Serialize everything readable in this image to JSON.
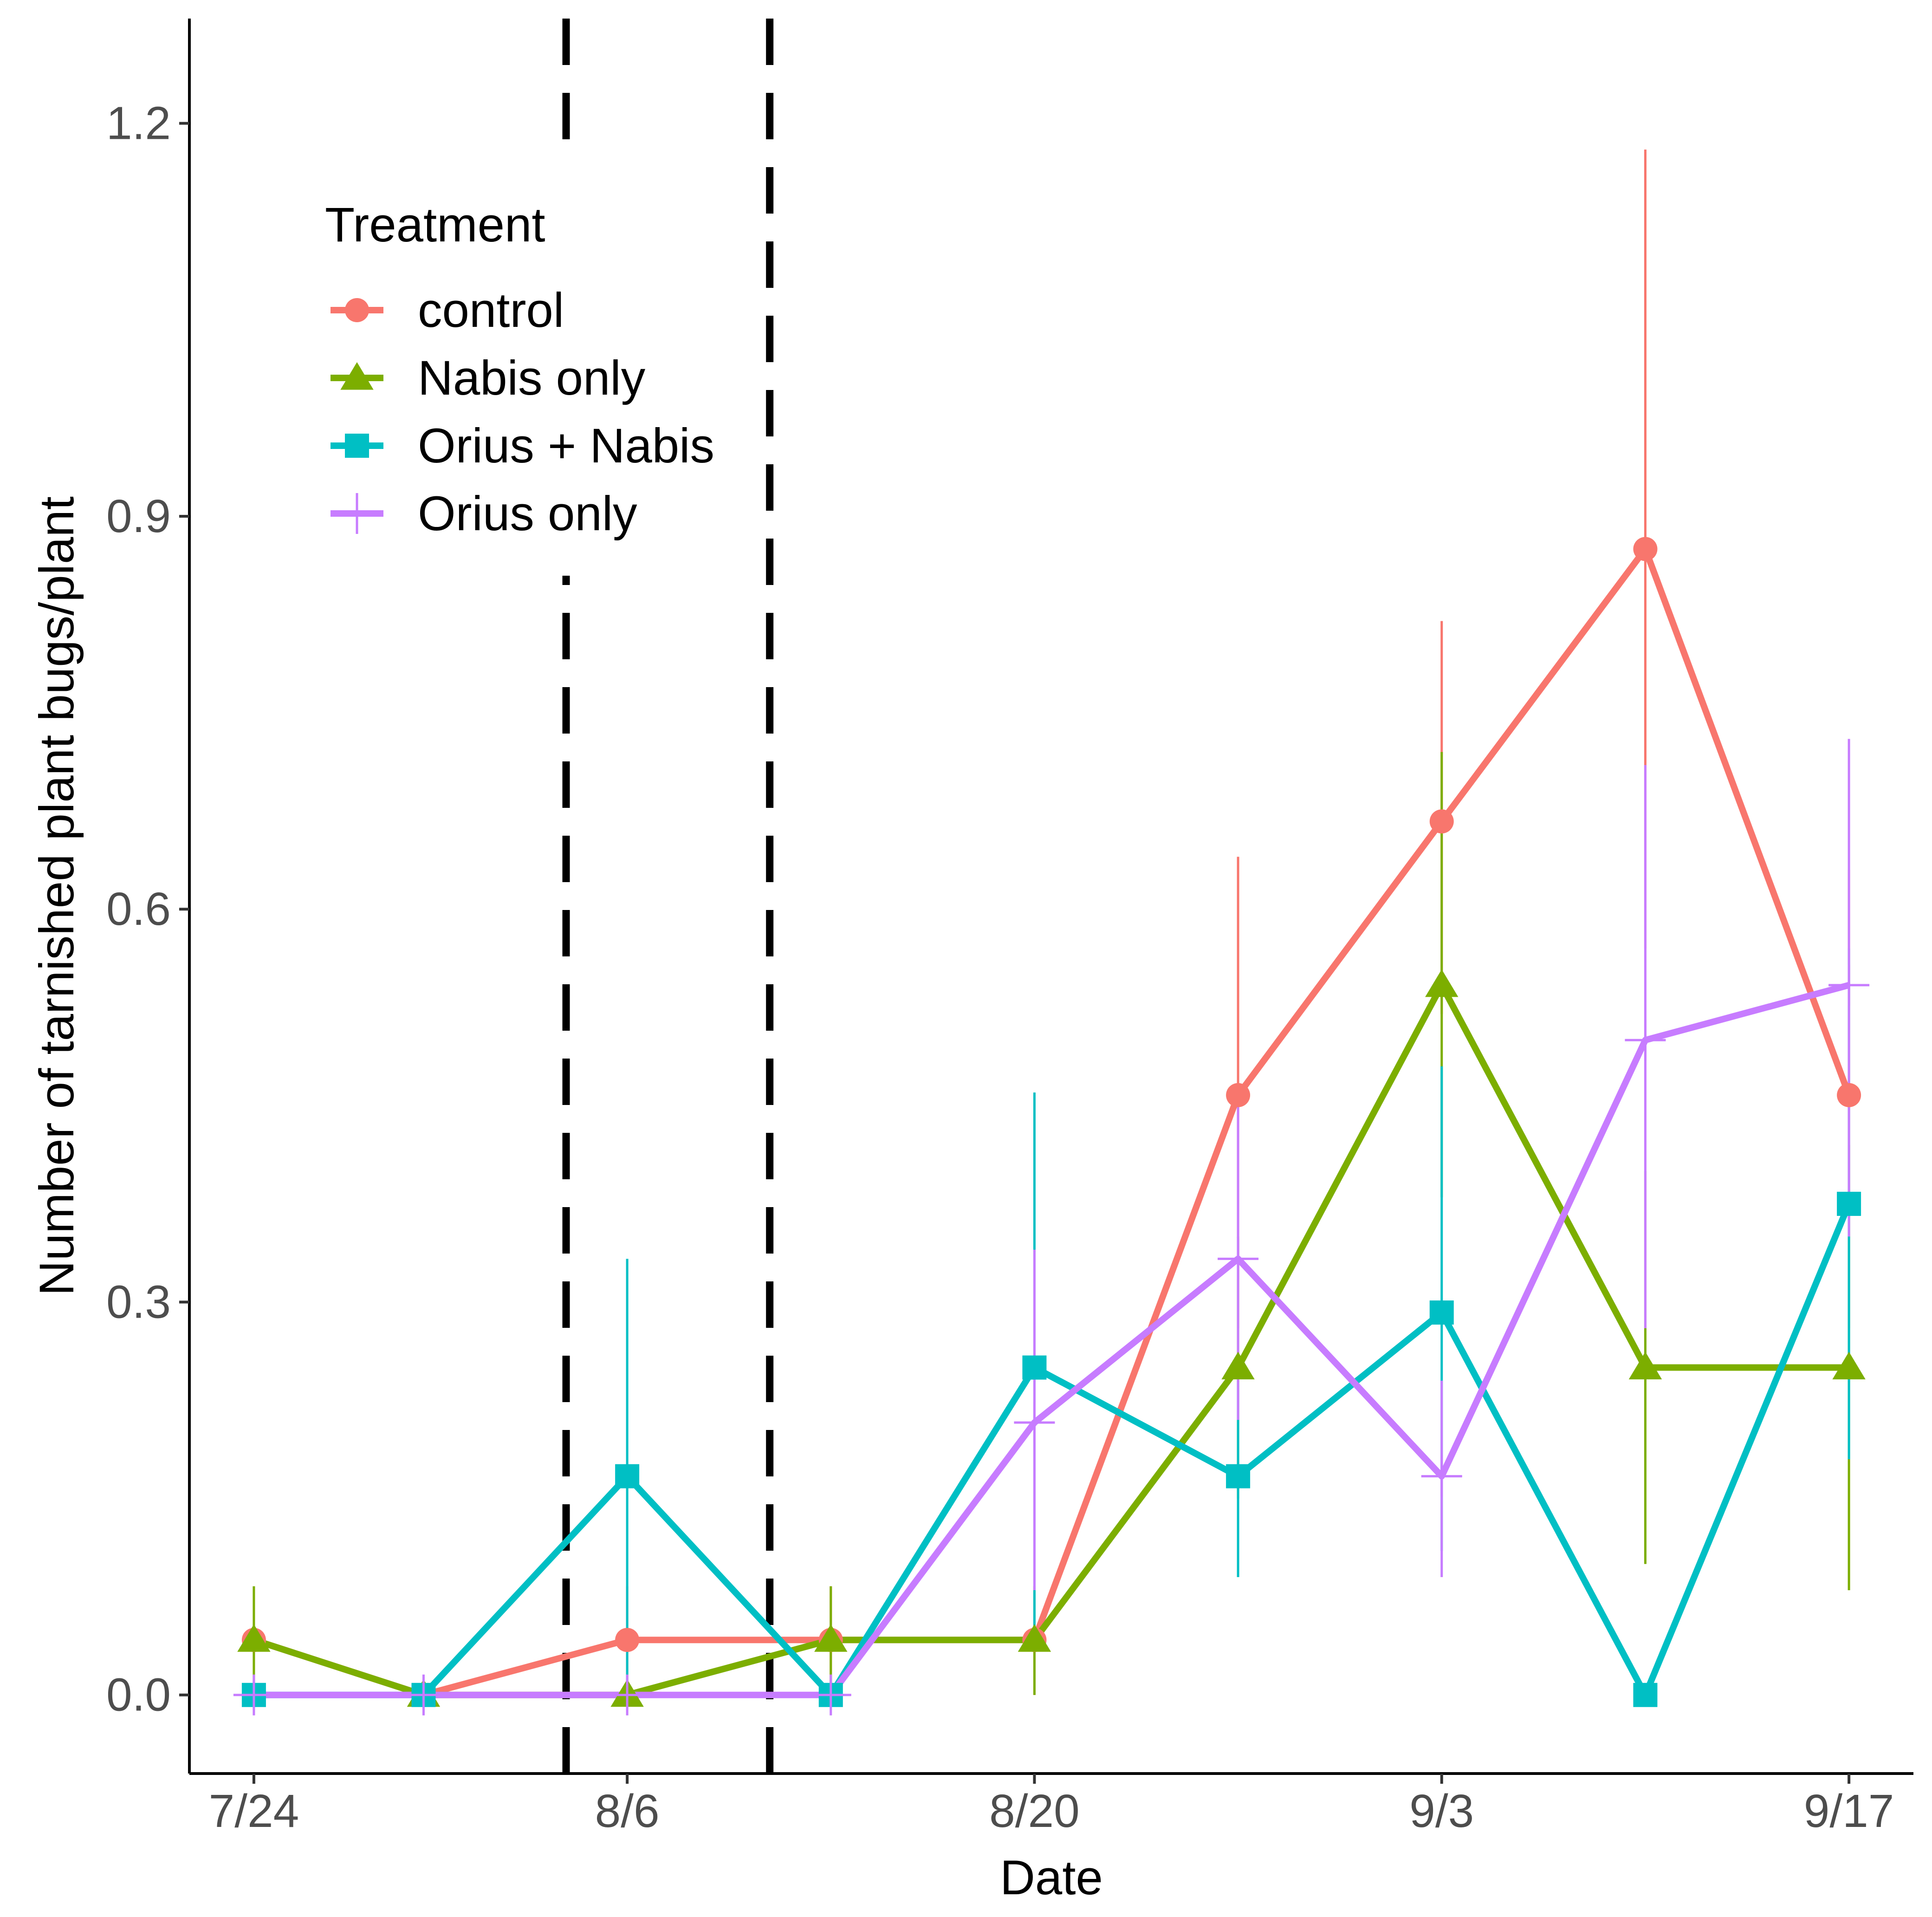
{
  "chart_data": {
    "type": "line",
    "title": "",
    "xlabel": "Date",
    "ylabel": "Number of tarnished plant bugs/plant",
    "x_days": [
      0,
      5,
      11,
      17,
      23,
      29,
      35,
      41,
      47
    ],
    "x_tick_days": [
      0,
      11,
      23,
      35,
      47
    ],
    "x_tick_labels": [
      "7/24",
      "8/6",
      "8/20",
      "9/3",
      "9/17"
    ],
    "ylim": [
      -0.06,
      1.28
    ],
    "y_ticks": [
      0.0,
      0.3,
      0.6,
      0.9,
      1.2
    ],
    "y_tick_labels": [
      "0.0",
      "0.3",
      "0.6",
      "0.9",
      "1.2"
    ],
    "vlines_days": [
      9.2,
      15.2
    ],
    "grid": false,
    "legend": {
      "title": "Treatment",
      "placement": "top-left"
    },
    "series": [
      {
        "name": "control",
        "color": "#F8766D",
        "marker": "circle",
        "values": [
          0.042,
          0.0,
          0.042,
          0.042,
          0.042,
          0.458,
          0.667,
          0.875,
          0.458
        ],
        "error": [
          null,
          null,
          [
            0.0,
            0.083
          ],
          [
            0.0,
            0.083
          ],
          [
            0.0,
            0.083
          ],
          [
            0.28,
            0.64
          ],
          [
            0.52,
            0.82
          ],
          [
            0.57,
            1.18
          ],
          [
            0.28,
            0.63
          ]
        ]
      },
      {
        "name": "Nabis only",
        "color": "#7CAE00",
        "marker": "triangle",
        "values": [
          0.042,
          0.0,
          0.0,
          0.042,
          0.042,
          0.25,
          0.542,
          0.25,
          0.25
        ],
        "error": [
          [
            0.0,
            0.083
          ],
          null,
          null,
          [
            0.0,
            0.083
          ],
          [
            0.0,
            0.083
          ],
          [
            0.15,
            0.35
          ],
          [
            0.38,
            0.72
          ],
          [
            0.1,
            0.4
          ],
          [
            0.08,
            0.42
          ]
        ]
      },
      {
        "name": "Orius + Nabis",
        "color": "#00BFC4",
        "marker": "square",
        "values": [
          0.0,
          0.0,
          0.167,
          0.0,
          0.25,
          0.167,
          0.292,
          0.0,
          0.375
        ],
        "error": [
          null,
          null,
          [
            0.0,
            0.333
          ],
          null,
          [
            0.04,
            0.46
          ],
          [
            0.09,
            0.24
          ],
          [
            0.11,
            0.48
          ],
          null,
          [
            0.18,
            0.57
          ]
        ]
      },
      {
        "name": "Orius only",
        "color": "#C77CFF",
        "marker": "plus",
        "values": [
          0.0,
          0.0,
          0.0,
          0.0,
          0.208,
          0.333,
          0.167,
          0.5,
          0.542
        ],
        "error": [
          null,
          null,
          null,
          null,
          [
            0.08,
            0.34
          ],
          [
            0.21,
            0.46
          ],
          [
            0.09,
            0.24
          ],
          [
            0.28,
            0.71
          ],
          [
            0.35,
            0.73
          ]
        ]
      }
    ]
  }
}
